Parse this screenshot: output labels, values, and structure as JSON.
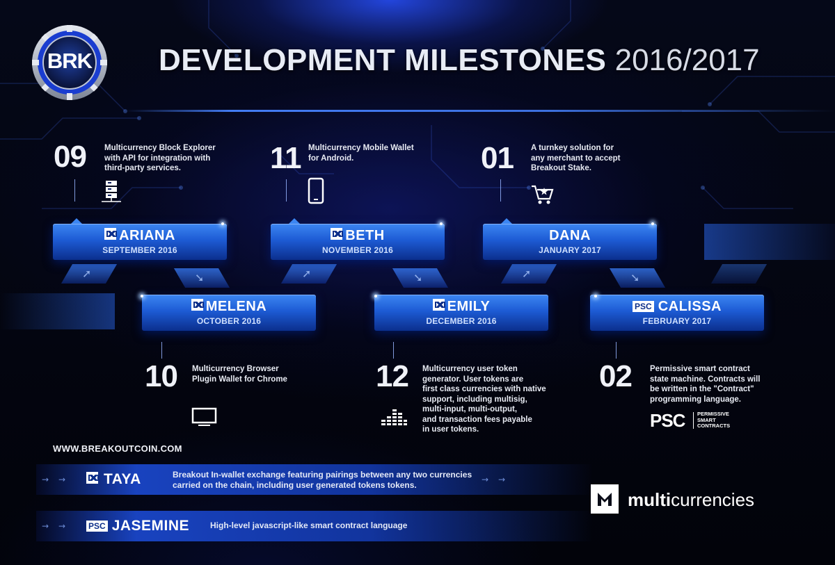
{
  "brand": {
    "logo_text": "BRK"
  },
  "title": {
    "main": "DEVELOPMENT MILESTONES",
    "years": "2016/2017"
  },
  "milestones": [
    {
      "number": "09",
      "description": "Multicurrency Block Explorer\nwith API for integration with\nthird-party services.",
      "icon": "server-icon"
    },
    {
      "number": "11",
      "description": "Multicurrency Mobile Wallet\nfor Android.",
      "icon": "smartphone-icon"
    },
    {
      "number": "01",
      "description": "A turnkey solution for\nany merchant to accept\nBreakout Stake.",
      "icon": "shopping-cart-icon"
    },
    {
      "number": "10",
      "description": "Multicurrency Browser\nPlugin Wallet for Chrome",
      "icon": "monitor-icon"
    },
    {
      "number": "12",
      "description": "Multicurrency user token\ngenerator. User tokens are\nfirst class currencies with native\nsupport, including multisig,\nmulti-input, multi-output,\nand transaction fees payable\nin user tokens.",
      "icon": "equalizer-icon"
    },
    {
      "number": "02",
      "description": "Permissive smart contract\nstate machine. Contracts will\nbe written in the \"Contract\"\nprogramming language.",
      "icon": "psc-logo"
    }
  ],
  "releases": [
    {
      "name": "ARIANA",
      "date": "SEPTEMBER 2016",
      "badge": "M"
    },
    {
      "name": "BETH",
      "date": "NOVEMBER 2016",
      "badge": "M"
    },
    {
      "name": "DANA",
      "date": "JANUARY 2017",
      "badge": ""
    },
    {
      "name": "MELENA",
      "date": "OCTOBER 2016",
      "badge": "M"
    },
    {
      "name": "EMILY",
      "date": "DECEMBER 2016",
      "badge": "M"
    },
    {
      "name": "CALISSA",
      "date": "FEBRUARY 2017",
      "badge": "PSC"
    }
  ],
  "psc_logo": {
    "big": "PSC",
    "small": "PERMISSIVE\nSMART\nCONTRACTS"
  },
  "website": "WWW.BREAKOUTCOIN.COM",
  "future": [
    {
      "name": "TAYA",
      "badge": "M",
      "description": "Breakout In-wallet exchange featuring pairings between any two currencies\ncarried on the chain, including user generated tokens tokens."
    },
    {
      "name": "JASEMINE",
      "badge": "PSC",
      "description": "High-level javascript-like smart contract language"
    }
  ],
  "multicurrencies": {
    "bold": "multi",
    "rest": "currencies"
  },
  "colors": {
    "card_top": "#3c86f2",
    "card_bottom": "#0b2f8d",
    "background": "#02030c",
    "accent": "#4682ff"
  }
}
